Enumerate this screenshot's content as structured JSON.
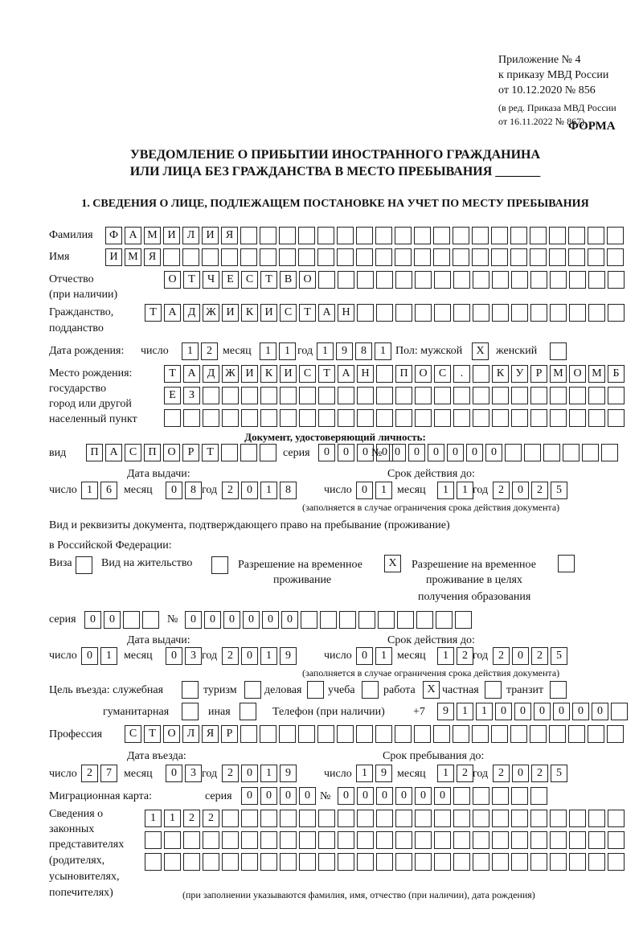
{
  "header": {
    "appendix": "Приложение № 4",
    "order": "к приказу МВД России",
    "date": "от 10.12.2020 № 856",
    "edit1": "(в ред. Приказа МВД России",
    "edit2": "от 16.11.2022 № 867)",
    "form": "ФОРМА"
  },
  "title": {
    "line1": "УВЕДОМЛЕНИЕ О ПРИБЫТИИ ИНОСТРАННОГО ГРАЖДАНИНА",
    "line2": "ИЛИ ЛИЦА БЕЗ ГРАЖДАНСТВА В МЕСТО ПРЕБЫВАНИЯ _______"
  },
  "section1": "1. СВЕДЕНИЯ О ЛИЦЕ, ПОДЛЕЖАЩЕМ ПОСТАНОВКЕ НА УЧЕТ ПО МЕСТУ ПРЕБЫВАНИЯ",
  "labels": {
    "surname": "Фамилия",
    "name": "Имя",
    "patronymic": "Отчество",
    "patronymic2": "(при наличии)",
    "citizenship": "Гражданство,",
    "citizenship2": "подданство",
    "birth_date": "Дата рождения:",
    "day": "число",
    "month": "месяц",
    "year": "год",
    "sex": "Пол: мужской",
    "female": "женский",
    "birthplace1": "Место рождения:",
    "birthplace2": "государство",
    "birthplace3": "город или другой",
    "birthplace4": "населенный пункт",
    "id_doc": "Документ, удостоверяющий личность:",
    "kind": "вид",
    "series": "серия",
    "number": "№",
    "issue_date": "Дата выдачи:",
    "valid_until": "Срок действия до:",
    "valid_note": "(заполняется в случае ограничения срока действия документа)",
    "permit1": "Вид и реквизиты документа, подтверждающего право на пребывание (проживание)",
    "permit2": "в Российской Федерации:",
    "visa": "Виза",
    "residence": "Вид на жительство",
    "temp1": "Разрешение на временное",
    "temp2": "проживание",
    "edu1": "Разрешение на временное",
    "edu2": "проживание в целях",
    "edu3": "получения образования",
    "purpose": "Цель въезда: служебная",
    "tourism": "туризм",
    "business": "деловая",
    "study": "учеба",
    "work": "работа",
    "private": "частная",
    "transit": "транзит",
    "humanitarian": "гуманитарная",
    "other": "иная",
    "phone": "Телефон (при наличии)",
    "phone_prefix": "+7",
    "profession": "Профессия",
    "entry_date": "Дата въезда:",
    "stay_until": "Срок пребывания до:",
    "migration_card": "Миграционная карта:",
    "reps1": "Сведения о",
    "reps2": "законных",
    "reps3": "представителях",
    "reps4": "(родителях,",
    "reps5": "усыновителях,",
    "reps6": "попечителях)",
    "reps_note": "(при заполнении указываются фамилия, имя, отчество (при наличии), дата рождения)"
  },
  "values": {
    "surname": "ФАМИЛИЯ",
    "name": "ИМЯ",
    "patronymic": "ОТЧЕСТВО",
    "citizenship": "ТАДЖИКИСТАН",
    "birth_day": "12",
    "birth_month": "11",
    "birth_year": "1981",
    "sex_male": "X",
    "sex_female": "",
    "birthplace1": "ТАДЖИКИСТАН ПОС. КУРМОМБ",
    "birthplace2": "ЕЗ",
    "birthplace3": "",
    "doc_kind": "ПАСПОРТ",
    "doc_series": "0000",
    "doc_number": "000000",
    "doc_issue_day": "16",
    "doc_issue_month": "08",
    "doc_issue_year": "2018",
    "doc_valid_day": "01",
    "doc_valid_month": "11",
    "doc_valid_year": "2025",
    "visa": "",
    "residence": "",
    "temp_residence": "X",
    "edu_residence": "",
    "permit_series": "00",
    "permit_number": "000000",
    "permit_issue_day": "01",
    "permit_issue_month": "03",
    "permit_issue_year": "2019",
    "permit_valid_day": "01",
    "permit_valid_month": "12",
    "permit_valid_year": "2025",
    "purpose_service": "",
    "purpose_tourism": "",
    "purpose_business": "",
    "purpose_study": "",
    "purpose_work": "X",
    "purpose_private": "",
    "purpose_transit": "",
    "purpose_humanitarian": "",
    "purpose_other": "",
    "phone": "911000000",
    "profession": "СТОЛЯР",
    "entry_day": "27",
    "entry_month": "03",
    "entry_year": "2019",
    "stay_day": "19",
    "stay_month": "12",
    "stay_year": "2025",
    "mc_series": "0000",
    "mc_number": "000000",
    "reps1": "1122",
    "reps2": "",
    "reps3": ""
  }
}
